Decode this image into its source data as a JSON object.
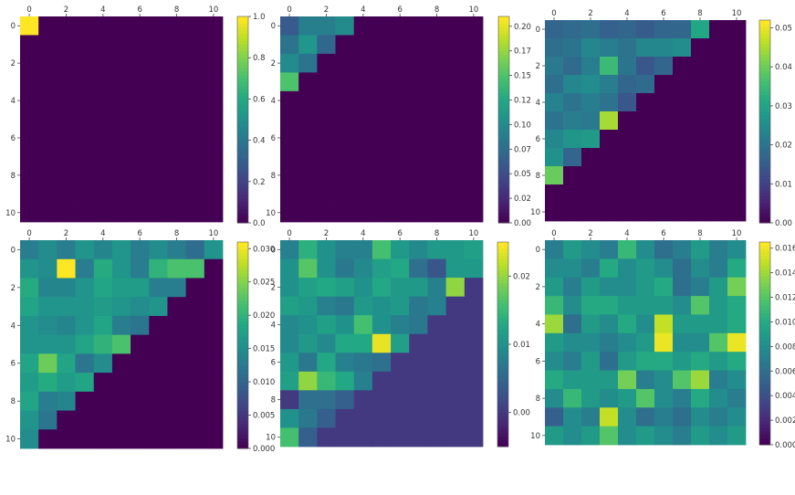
{
  "figure": {
    "layout": "2 rows x 3 columns of heatmaps with colorbars",
    "colormap": "viridis"
  },
  "chart_data": [
    {
      "type": "heatmap",
      "id": "p1",
      "colormap": "viridis",
      "x_ticks": [
        "0",
        "2",
        "4",
        "6",
        "8",
        "10"
      ],
      "y_ticks": [
        "0",
        "2",
        "4",
        "6",
        "8",
        "10"
      ],
      "colorbar": {
        "min": 0.0,
        "max": 1.0,
        "ticks": [
          {
            "label": "0.0",
            "v": 0.0
          },
          {
            "label": "0.2",
            "v": 0.2
          },
          {
            "label": "0.4",
            "v": 0.4
          },
          {
            "label": "0.6",
            "v": 0.6
          },
          {
            "label": "0.8",
            "v": 0.8
          },
          {
            "label": "1.0",
            "v": 1.0
          }
        ]
      },
      "matrix": [
        [
          1.0,
          0,
          0,
          0,
          0,
          0,
          0,
          0,
          0,
          0,
          0
        ],
        [
          0,
          0,
          0,
          0,
          0,
          0,
          0,
          0,
          0,
          0,
          0
        ],
        [
          0,
          0,
          0,
          0,
          0,
          0,
          0,
          0,
          0,
          0,
          0
        ],
        [
          0,
          0,
          0,
          0,
          0,
          0,
          0,
          0,
          0,
          0,
          0
        ],
        [
          0,
          0,
          0,
          0,
          0,
          0,
          0,
          0,
          0,
          0,
          0
        ],
        [
          0,
          0,
          0,
          0,
          0,
          0,
          0,
          0,
          0,
          0,
          0
        ],
        [
          0,
          0,
          0,
          0,
          0,
          0,
          0,
          0,
          0,
          0,
          0
        ],
        [
          0,
          0,
          0,
          0,
          0,
          0,
          0,
          0,
          0,
          0,
          0
        ],
        [
          0,
          0,
          0,
          0,
          0,
          0,
          0,
          0,
          0,
          0,
          0
        ],
        [
          0,
          0,
          0,
          0,
          0,
          0,
          0,
          0,
          0,
          0,
          0
        ],
        [
          0,
          0,
          0,
          0,
          0,
          0,
          0,
          0,
          0,
          0,
          0
        ]
      ]
    },
    {
      "type": "heatmap",
      "id": "p2",
      "colormap": "viridis",
      "x_ticks": [
        "0",
        "2",
        "4",
        "6",
        "8",
        "10"
      ],
      "y_ticks": [
        "0",
        "2",
        "4",
        "6",
        "8",
        "10"
      ],
      "colorbar": {
        "min": 0.0,
        "max": 0.21,
        "ticks": [
          {
            "label": "0.00",
            "v": 0.0
          },
          {
            "label": "0.02",
            "v": 0.025
          },
          {
            "label": "0.05",
            "v": 0.05
          },
          {
            "label": "0.07",
            "v": 0.075
          },
          {
            "label": "0.10",
            "v": 0.1
          },
          {
            "label": "0.12",
            "v": 0.125
          },
          {
            "label": "0.15",
            "v": 0.15
          },
          {
            "label": "0.17",
            "v": 0.175
          },
          {
            "label": "0.20",
            "v": 0.2
          }
        ]
      },
      "matrix": [
        [
          0.06,
          0.09,
          0.09,
          0.1,
          0,
          0,
          0,
          0,
          0,
          0,
          0
        ],
        [
          0.08,
          0.11,
          0.07,
          0,
          0,
          0,
          0,
          0,
          0,
          0,
          0
        ],
        [
          0.1,
          0.08,
          0,
          0,
          0,
          0,
          0,
          0,
          0,
          0,
          0
        ],
        [
          0.15,
          0,
          0,
          0,
          0,
          0,
          0,
          0,
          0,
          0,
          0
        ],
        [
          0,
          0,
          0,
          0,
          0,
          0,
          0,
          0,
          0,
          0,
          0
        ],
        [
          0,
          0,
          0,
          0,
          0,
          0,
          0,
          0,
          0,
          0,
          0
        ],
        [
          0,
          0,
          0,
          0,
          0,
          0,
          0,
          0,
          0,
          0,
          0
        ],
        [
          0,
          0,
          0,
          0,
          0,
          0,
          0,
          0,
          0,
          0,
          0
        ],
        [
          0,
          0,
          0,
          0,
          0,
          0,
          0,
          0,
          0,
          0,
          0
        ],
        [
          0,
          0,
          0,
          0,
          0,
          0,
          0,
          0,
          0,
          0,
          0
        ],
        [
          0,
          0,
          0,
          0,
          0,
          0,
          0,
          0,
          0,
          0,
          0
        ]
      ]
    },
    {
      "type": "heatmap",
      "id": "p3",
      "colormap": "viridis",
      "x_ticks": [
        "0",
        "2",
        "4",
        "6",
        "8",
        "10"
      ],
      "y_ticks": [
        "0",
        "2",
        "4",
        "6",
        "8",
        "10"
      ],
      "colorbar": {
        "min": 0.0,
        "max": 0.052,
        "ticks": [
          {
            "label": "0.00",
            "v": 0.0
          },
          {
            "label": "0.01",
            "v": 0.01
          },
          {
            "label": "0.02",
            "v": 0.02
          },
          {
            "label": "0.03",
            "v": 0.03
          },
          {
            "label": "0.04",
            "v": 0.04
          },
          {
            "label": "0.05",
            "v": 0.05
          }
        ]
      },
      "matrix": [
        [
          0.017,
          0.018,
          0.019,
          0.016,
          0.017,
          0.015,
          0.017,
          0.017,
          0.031,
          0,
          0
        ],
        [
          0.019,
          0.02,
          0.024,
          0.022,
          0.02,
          0.024,
          0.024,
          0.025,
          0,
          0,
          0
        ],
        [
          0.021,
          0.018,
          0.022,
          0.035,
          0.02,
          0.014,
          0.017,
          0,
          0,
          0,
          0
        ],
        [
          0.019,
          0.024,
          0.025,
          0.022,
          0.017,
          0.018,
          0,
          0,
          0,
          0,
          0
        ],
        [
          0.023,
          0.02,
          0.022,
          0.02,
          0.014,
          0,
          0,
          0,
          0,
          0,
          0
        ],
        [
          0.02,
          0.022,
          0.021,
          0.045,
          0,
          0,
          0,
          0,
          0,
          0,
          0
        ],
        [
          0.024,
          0.027,
          0.028,
          0,
          0,
          0,
          0,
          0,
          0,
          0,
          0
        ],
        [
          0.026,
          0.017,
          0,
          0,
          0,
          0,
          0,
          0,
          0,
          0,
          0
        ],
        [
          0.04,
          0,
          0,
          0,
          0,
          0,
          0,
          0,
          0,
          0,
          0
        ],
        [
          0,
          0,
          0,
          0,
          0,
          0,
          0,
          0,
          0,
          0,
          0
        ],
        [
          0,
          0,
          0,
          0,
          0,
          0,
          0,
          0,
          0,
          0,
          0
        ]
      ]
    },
    {
      "type": "heatmap",
      "id": "p4",
      "colormap": "viridis",
      "x_ticks": [
        "0",
        "2",
        "4",
        "6",
        "8",
        "10"
      ],
      "y_ticks": [
        "0",
        "2",
        "4",
        "6",
        "8",
        "10"
      ],
      "colorbar": {
        "min": 0.0,
        "max": 0.031,
        "ticks": [
          {
            "label": "0.000",
            "v": 0.0
          },
          {
            "label": "0.005",
            "v": 0.005
          },
          {
            "label": "0.010",
            "v": 0.01
          },
          {
            "label": "0.015",
            "v": 0.015
          },
          {
            "label": "0.020",
            "v": 0.02
          },
          {
            "label": "0.025",
            "v": 0.025
          },
          {
            "label": "0.030",
            "v": 0.03
          }
        ]
      },
      "matrix": [
        [
          0.013,
          0.015,
          0.013,
          0.016,
          0.014,
          0.016,
          0.013,
          0.015,
          0.013,
          0.011,
          0.016
        ],
        [
          0.016,
          0.015,
          0.031,
          0.013,
          0.019,
          0.016,
          0.013,
          0.02,
          0.022,
          0.022,
          0
        ],
        [
          0.019,
          0.014,
          0.014,
          0.016,
          0.018,
          0.017,
          0.017,
          0.013,
          0.013,
          0,
          0
        ],
        [
          0.018,
          0.016,
          0.016,
          0.016,
          0.017,
          0.016,
          0.015,
          0.016,
          0,
          0,
          0
        ],
        [
          0.016,
          0.015,
          0.014,
          0.016,
          0.018,
          0.013,
          0.012,
          0,
          0,
          0,
          0
        ],
        [
          0.016,
          0.016,
          0.016,
          0.018,
          0.02,
          0.022,
          0,
          0,
          0,
          0,
          0
        ],
        [
          0.018,
          0.024,
          0.018,
          0.012,
          0.015,
          0,
          0,
          0,
          0,
          0,
          0
        ],
        [
          0.017,
          0.019,
          0.017,
          0.018,
          0,
          0,
          0,
          0,
          0,
          0,
          0
        ],
        [
          0.018,
          0.013,
          0.014,
          0,
          0,
          0,
          0,
          0,
          0,
          0,
          0
        ],
        [
          0.016,
          0.012,
          0,
          0,
          0,
          0,
          0,
          0,
          0,
          0,
          0
        ],
        [
          0.015,
          0,
          0,
          0,
          0,
          0,
          0,
          0,
          0,
          0,
          0
        ]
      ]
    },
    {
      "type": "heatmap",
      "id": "p5",
      "colormap": "viridis",
      "x_ticks": [
        "0",
        "2",
        "4",
        "6",
        "8",
        "10"
      ],
      "y_ticks": [
        "0",
        "2",
        "4",
        "6",
        "8",
        "10"
      ],
      "colorbar": {
        "min": -0.005,
        "max": 0.025,
        "ticks": [
          {
            "label": "0.00",
            "v": 0.0
          },
          {
            "label": "0.01",
            "v": 0.01
          },
          {
            "label": "0.02",
            "v": 0.02
          }
        ]
      },
      "matrix": [
        [
          0.008,
          0.014,
          0.01,
          0.008,
          0.008,
          0.016,
          0.011,
          0.009,
          0.011,
          0.011,
          0.012
        ],
        [
          0.01,
          0.017,
          0.01,
          0.007,
          0.009,
          0.012,
          0.013,
          0.006,
          0.003,
          0.011,
          0.011
        ],
        [
          0.01,
          0.012,
          0.013,
          0.012,
          0.01,
          0.013,
          0.011,
          0.011,
          0.008,
          0.02,
          0
        ],
        [
          0.012,
          0.011,
          0.008,
          0.007,
          0.011,
          0.01,
          0.011,
          0.007,
          0.008,
          0,
          0
        ],
        [
          0.009,
          0.01,
          0.012,
          0.01,
          0.016,
          0.01,
          0.008,
          0.007,
          0,
          0,
          0
        ],
        [
          0.009,
          0.011,
          0.009,
          0.013,
          0.013,
          0.024,
          0.012,
          0,
          0,
          0,
          0
        ],
        [
          0.011,
          0.007,
          0.013,
          0.008,
          0.007,
          0.006,
          0,
          0,
          0,
          0,
          0
        ],
        [
          0.012,
          0.02,
          0.015,
          0.013,
          0.008,
          0,
          0,
          0,
          0,
          0,
          0
        ],
        [
          0.0,
          0.006,
          0.006,
          0.004,
          0,
          0,
          0,
          0,
          0,
          0,
          0
        ],
        [
          0.01,
          0.007,
          0.004,
          0,
          0,
          0,
          0,
          0,
          0,
          0,
          0
        ],
        [
          0.016,
          0.004,
          0,
          0,
          0,
          0,
          0,
          0,
          0,
          0,
          0
        ]
      ]
    },
    {
      "type": "heatmap",
      "id": "p6",
      "colormap": "viridis",
      "x_ticks": [
        "0",
        "2",
        "4",
        "6",
        "8",
        "10"
      ],
      "y_ticks": [
        "0",
        "2",
        "4",
        "6",
        "8",
        "10"
      ],
      "colorbar": {
        "min": 0.0,
        "max": 0.0165,
        "ticks": [
          {
            "label": "0.000",
            "v": 0.0
          },
          {
            "label": "0.002",
            "v": 0.002
          },
          {
            "label": "0.004",
            "v": 0.004
          },
          {
            "label": "0.006",
            "v": 0.006
          },
          {
            "label": "0.008",
            "v": 0.008
          },
          {
            "label": "0.010",
            "v": 0.01
          },
          {
            "label": "0.012",
            "v": 0.012
          },
          {
            "label": "0.014",
            "v": 0.014
          },
          {
            "label": "0.016",
            "v": 0.016
          }
        ]
      },
      "matrix": [
        [
          0.007,
          0.009,
          0.008,
          0.007,
          0.011,
          0.008,
          0.006,
          0.007,
          0.009,
          0.007,
          0.008
        ],
        [
          0.008,
          0.008,
          0.007,
          0.01,
          0.008,
          0.009,
          0.008,
          0.006,
          0.008,
          0.007,
          0.01
        ],
        [
          0.009,
          0.007,
          0.009,
          0.008,
          0.008,
          0.009,
          0.01,
          0.006,
          0.007,
          0.009,
          0.013
        ],
        [
          0.011,
          0.008,
          0.01,
          0.01,
          0.009,
          0.009,
          0.009,
          0.008,
          0.012,
          0.009,
          0.01
        ],
        [
          0.014,
          0.006,
          0.009,
          0.008,
          0.01,
          0.008,
          0.015,
          0.009,
          0.009,
          0.009,
          0.01
        ],
        [
          0.009,
          0.008,
          0.008,
          0.007,
          0.008,
          0.009,
          0.016,
          0.008,
          0.008,
          0.012,
          0.016
        ],
        [
          0.008,
          0.007,
          0.009,
          0.006,
          0.009,
          0.01,
          0.01,
          0.009,
          0.01,
          0.009,
          0.01
        ],
        [
          0.01,
          0.009,
          0.009,
          0.009,
          0.013,
          0.007,
          0.008,
          0.012,
          0.014,
          0.007,
          0.008
        ],
        [
          0.008,
          0.011,
          0.009,
          0.008,
          0.009,
          0.012,
          0.008,
          0.007,
          0.01,
          0.008,
          0.007
        ],
        [
          0.005,
          0.008,
          0.007,
          0.015,
          0.008,
          0.006,
          0.007,
          0.006,
          0.008,
          0.007,
          0.008
        ],
        [
          0.009,
          0.008,
          0.009,
          0.012,
          0.008,
          0.009,
          0.008,
          0.007,
          0.009,
          0.008,
          0.009
        ]
      ]
    }
  ]
}
